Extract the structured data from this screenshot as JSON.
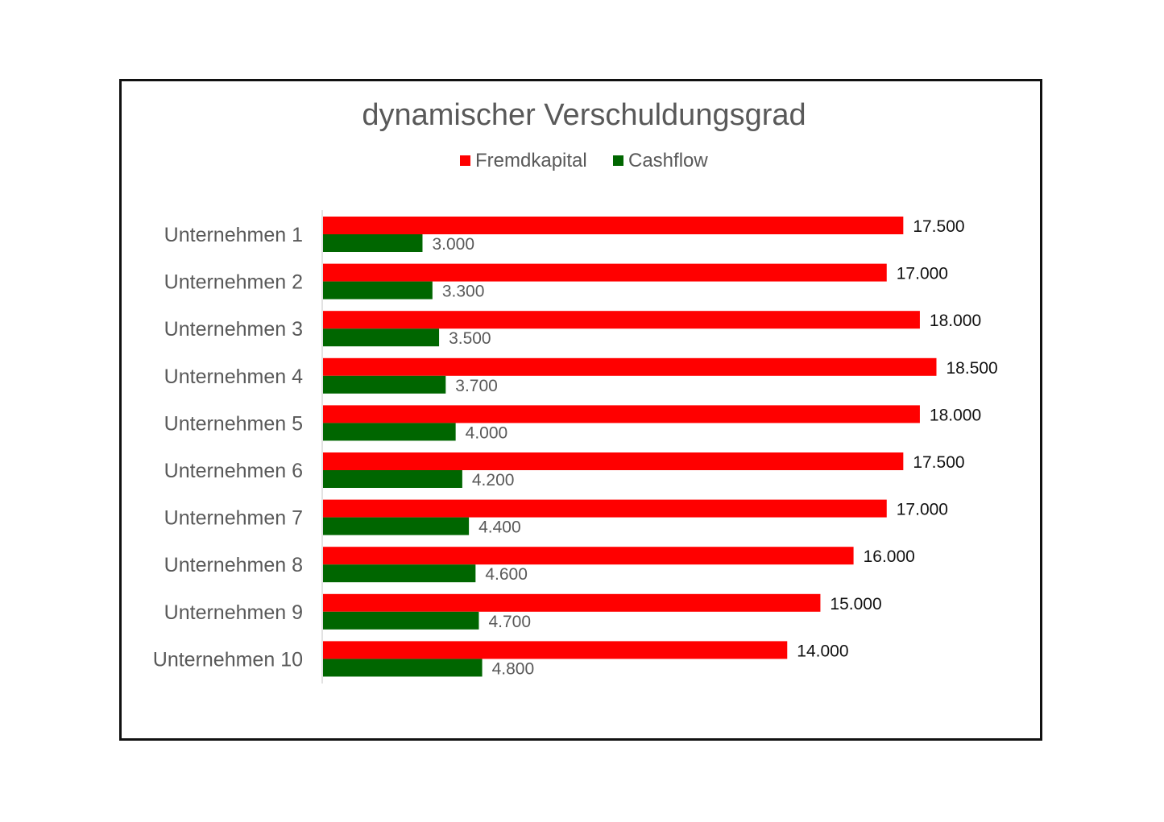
{
  "chart_data": {
    "type": "bar",
    "orientation": "horizontal",
    "title": "dynamischer Verschuldungsgrad",
    "categories": [
      "Unternehmen 1",
      "Unternehmen 2",
      "Unternehmen 3",
      "Unternehmen 4",
      "Unternehmen 5",
      "Unternehmen 6",
      "Unternehmen 7",
      "Unternehmen 8",
      "Unternehmen 9",
      "Unternehmen 10"
    ],
    "series": [
      {
        "name": "Fremdkapital",
        "color": "#ff0000",
        "values": [
          17500,
          17000,
          18000,
          18500,
          18000,
          17500,
          17000,
          16000,
          15000,
          14000
        ],
        "labels": [
          "17.500",
          "17.000",
          "18.000",
          "18.500",
          "18.000",
          "17.500",
          "17.000",
          "16.000",
          "15.000",
          "14.000"
        ]
      },
      {
        "name": "Cashflow",
        "color": "#006600",
        "values": [
          3000,
          3300,
          3500,
          3700,
          4000,
          4200,
          4400,
          4600,
          4700,
          4800
        ],
        "labels": [
          "3.000",
          "3.300",
          "3.500",
          "3.700",
          "4.000",
          "4.200",
          "4.400",
          "4.600",
          "4.700",
          "4.800"
        ]
      }
    ],
    "xlim": [
      0,
      18500
    ],
    "legend_position": "top",
    "grid": false
  }
}
